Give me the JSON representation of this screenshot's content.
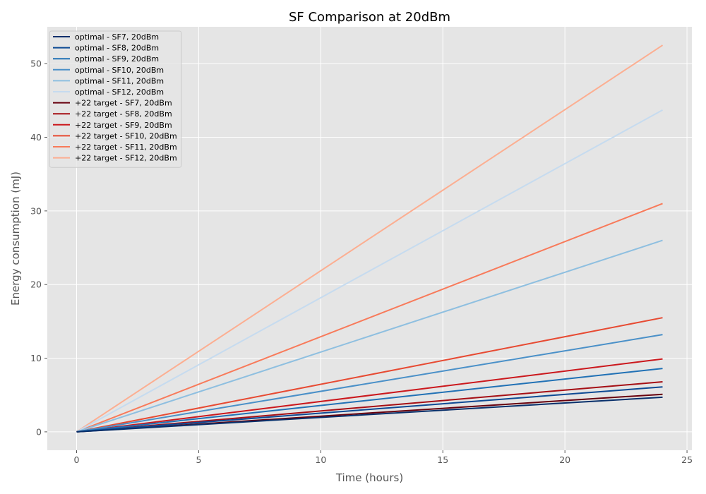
{
  "chart_data": {
    "type": "line",
    "title": "SF Comparison at 20dBm",
    "xlabel": "Time (hours)",
    "ylabel": "Energy consumption (mJ)",
    "xlim": [
      -1.2,
      25.2
    ],
    "ylim": [
      -2.5,
      55
    ],
    "xticks": [
      0,
      5,
      10,
      15,
      20,
      25
    ],
    "yticks": [
      0,
      10,
      20,
      30,
      40,
      50
    ],
    "grid": true,
    "legend_position": "top-left",
    "series": [
      {
        "name": "optimal - SF7, 20dBm",
        "color": "#08306b",
        "x": [
          0,
          24
        ],
        "y": [
          0,
          4.7
        ]
      },
      {
        "name": "optimal - SF8, 20dBm",
        "color": "#0d4a94",
        "x": [
          0,
          24
        ],
        "y": [
          0,
          6.1
        ]
      },
      {
        "name": "optimal - SF9, 20dBm",
        "color": "#2171b5",
        "x": [
          0,
          24
        ],
        "y": [
          0,
          8.6
        ]
      },
      {
        "name": "optimal - SF10, 20dBm",
        "color": "#4a90c8",
        "x": [
          0,
          24
        ],
        "y": [
          0,
          13.2
        ]
      },
      {
        "name": "optimal - SF11, 20dBm",
        "color": "#8ebfe0",
        "x": [
          0,
          24
        ],
        "y": [
          0,
          26.0
        ]
      },
      {
        "name": "optimal - SF12, 20dBm",
        "color": "#c6dbef",
        "x": [
          0,
          24
        ],
        "y": [
          0,
          43.7
        ]
      },
      {
        "name": "+22 target - SF7, 20dBm",
        "color": "#67000d",
        "x": [
          0,
          24
        ],
        "y": [
          0,
          5.1
        ]
      },
      {
        "name": "+22 target - SF8, 20dBm",
        "color": "#a50f15",
        "x": [
          0,
          24
        ],
        "y": [
          0,
          6.8
        ]
      },
      {
        "name": "+22 target - SF9, 20dBm",
        "color": "#cb181d",
        "x": [
          0,
          24
        ],
        "y": [
          0,
          9.9
        ]
      },
      {
        "name": "+22 target - SF10, 20dBm",
        "color": "#e74a32",
        "x": [
          0,
          24
        ],
        "y": [
          0,
          15.5
        ]
      },
      {
        "name": "+22 target - SF11, 20dBm",
        "color": "#f87a5a",
        "x": [
          0,
          24
        ],
        "y": [
          0,
          31.0
        ]
      },
      {
        "name": "+22 target - SF12, 20dBm",
        "color": "#fcae91",
        "x": [
          0,
          24
        ],
        "y": [
          0,
          52.5
        ]
      }
    ]
  }
}
